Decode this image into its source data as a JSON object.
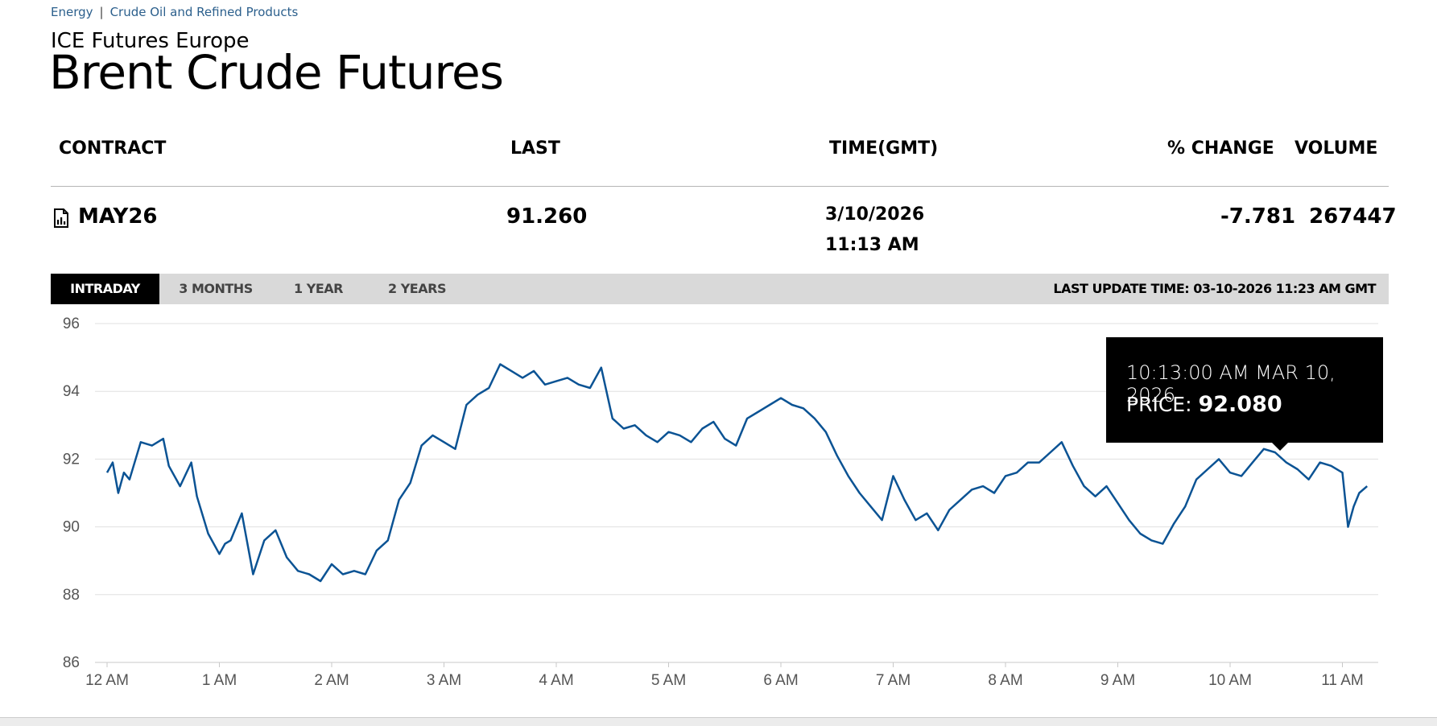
{
  "breadcrumb": {
    "item1": "Energy",
    "separator": "|",
    "item2": "Crude Oil and Refined Products"
  },
  "exchange": "ICE Futures Europe",
  "title": "Brent Crude Futures",
  "table": {
    "headers": {
      "contract": "CONTRACT",
      "last": "LAST",
      "time": "TIME(GMT)",
      "change": "% CHANGE",
      "volume": "VOLUME"
    },
    "row": {
      "contract": "MAY26",
      "last": "91.260",
      "date": "3/10/2026",
      "time": "11:13 AM",
      "change": "-7.781",
      "volume": "267447"
    }
  },
  "tabs": [
    "INTRADAY",
    "3 MONTHS",
    "1 YEAR",
    "2 YEARS"
  ],
  "active_tab": "INTRADAY",
  "last_update": "LAST UPDATE TIME: 03-10-2026 11:23 AM GMT",
  "tooltip": {
    "time": "10:13:00 AM MAR 10, 2026",
    "price_label": "PRICE:",
    "price_value": "92.080"
  },
  "colors": {
    "line": "#0b5394",
    "grid": "#e0e0e0",
    "tab_active": "#000000",
    "tab_bar": "#d9d9d9"
  },
  "icons": {
    "contract": "document-chart-icon"
  },
  "chart_data": {
    "type": "line",
    "xlabel": "",
    "ylabel": "",
    "ylim": [
      86,
      96
    ],
    "yticks": [
      "96",
      "94",
      "92",
      "90",
      "88",
      "86"
    ],
    "xticks": [
      "12 AM",
      "1 AM",
      "2 AM",
      "3 AM",
      "4 AM",
      "5 AM",
      "6 AM",
      "7 AM",
      "8 AM",
      "9 AM",
      "10 AM",
      "11 AM"
    ],
    "x_hours": [
      0,
      0.05,
      0.1,
      0.15,
      0.2,
      0.3,
      0.4,
      0.5,
      0.55,
      0.65,
      0.75,
      0.8,
      0.9,
      1.0,
      1.05,
      1.1,
      1.2,
      1.3,
      1.4,
      1.5,
      1.6,
      1.7,
      1.8,
      1.9,
      2.0,
      2.1,
      2.2,
      2.3,
      2.4,
      2.5,
      2.6,
      2.7,
      2.8,
      2.9,
      3.0,
      3.1,
      3.2,
      3.3,
      3.4,
      3.5,
      3.6,
      3.7,
      3.8,
      3.9,
      4.0,
      4.1,
      4.2,
      4.3,
      4.4,
      4.5,
      4.6,
      4.7,
      4.8,
      4.9,
      5.0,
      5.1,
      5.2,
      5.3,
      5.4,
      5.5,
      5.6,
      5.7,
      5.8,
      5.9,
      6.0,
      6.1,
      6.2,
      6.3,
      6.4,
      6.5,
      6.6,
      6.7,
      6.8,
      6.9,
      7.0,
      7.1,
      7.2,
      7.3,
      7.4,
      7.5,
      7.6,
      7.7,
      7.8,
      7.9,
      8.0,
      8.1,
      8.2,
      8.3,
      8.4,
      8.5,
      8.6,
      8.7,
      8.8,
      8.9,
      9.0,
      9.1,
      9.2,
      9.3,
      9.4,
      9.5,
      9.6,
      9.7,
      9.8,
      9.9,
      10.0,
      10.1,
      10.2,
      10.3,
      10.4,
      10.5,
      10.6,
      10.7,
      10.8,
      10.9,
      11.0,
      11.05,
      11.1,
      11.15,
      11.22
    ],
    "series": [
      {
        "values": [
          91.6,
          91.9,
          91.0,
          91.6,
          91.4,
          92.5,
          92.4,
          92.6,
          91.8,
          91.2,
          91.9,
          90.9,
          89.8,
          89.2,
          89.5,
          89.6,
          90.4,
          88.6,
          89.6,
          89.9,
          89.1,
          88.7,
          88.6,
          88.4,
          88.9,
          88.6,
          88.7,
          88.6,
          89.3,
          89.6,
          90.8,
          91.3,
          92.4,
          92.7,
          92.5,
          92.3,
          93.6,
          93.9,
          94.1,
          94.8,
          94.6,
          94.4,
          94.6,
          94.2,
          94.3,
          94.4,
          94.2,
          94.1,
          94.7,
          93.2,
          92.9,
          93.0,
          92.7,
          92.5,
          92.8,
          92.7,
          92.5,
          92.9,
          93.1,
          92.6,
          92.4,
          93.2,
          93.4,
          93.6,
          93.8,
          93.6,
          93.5,
          93.2,
          92.8,
          92.1,
          91.5,
          91.0,
          90.6,
          90.2,
          91.5,
          90.8,
          90.2,
          90.4,
          89.9,
          90.5,
          90.8,
          91.1,
          91.2,
          91.0,
          91.5,
          91.6,
          91.9,
          91.9,
          92.2,
          92.5,
          91.8,
          91.2,
          90.9,
          91.2,
          90.7,
          90.2,
          89.8,
          89.6,
          89.5,
          90.1,
          90.6,
          91.4,
          91.7,
          92.0,
          91.6,
          91.5,
          91.9,
          92.3,
          92.2,
          91.9,
          91.7,
          91.4,
          91.9,
          91.8,
          91.6,
          90.0,
          90.6,
          91.0,
          91.2
        ]
      }
    ]
  }
}
